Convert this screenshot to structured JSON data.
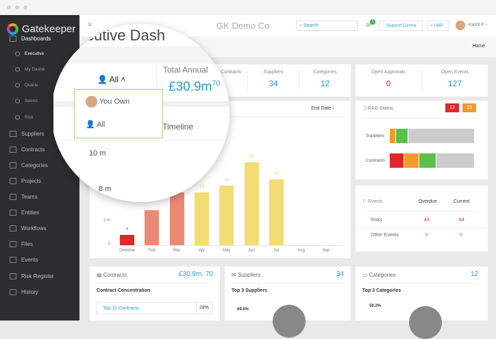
{
  "app": {
    "name": "Gatekeeper",
    "title_full": "GK Demo Co",
    "title_magnified": "cutive Dash"
  },
  "sidebar": {
    "items": [
      {
        "label": "Dashboards",
        "icon": "monitor-icon"
      },
      {
        "label": "Executive",
        "icon": "globe-icon",
        "sub": true
      },
      {
        "label": "My Dashb",
        "icon": "dashboard-icon",
        "sub": true
      },
      {
        "label": "Quarte",
        "icon": "plus-circle-icon",
        "sub": true
      },
      {
        "label": "Spend",
        "icon": "chart-icon",
        "sub": true
      },
      {
        "label": "Risk",
        "icon": "warning-icon",
        "sub": true
      },
      {
        "label": "Suppliers",
        "icon": "briefcase-icon"
      },
      {
        "label": "Contracts",
        "icon": "document-icon"
      },
      {
        "label": "Categories",
        "icon": "folder-icon"
      },
      {
        "label": "Projects",
        "icon": "project-icon"
      },
      {
        "label": "Teams",
        "icon": "team-icon"
      },
      {
        "label": "Entities",
        "icon": "building-icon"
      },
      {
        "label": "Workflows",
        "icon": "workflow-icon"
      },
      {
        "label": "Files",
        "icon": "folder-icon"
      },
      {
        "label": "Events",
        "icon": "flag-icon"
      },
      {
        "label": "Risk Register",
        "icon": "warning-icon"
      },
      {
        "label": "History",
        "icon": "clock-icon"
      }
    ]
  },
  "header": {
    "search_placeholder": "Search",
    "notifications": "1",
    "support": "Support Centre",
    "currency": "GBP",
    "user": "Karol P"
  },
  "breadcrumb": "Home",
  "filter": {
    "selected": "All",
    "options": [
      "You Own",
      "All"
    ]
  },
  "stats": {
    "total_label": "Total Annual",
    "total_value": "£30.9m",
    "contracts_label": "Contracts",
    "contracts_value": "70",
    "suppliers_label": "Suppliers",
    "suppliers_value": "34",
    "categories_label": "Categories",
    "categories_value": "12",
    "approvals_label": "Open Approvals",
    "approvals_value": "0",
    "events_label": "Open Events",
    "events_value": "127"
  },
  "timeline": {
    "title_fragment": "s Timeline",
    "end_date": "End Date"
  },
  "chart_data": {
    "type": "bar",
    "categories": [
      "Overdue",
      "Feb",
      "Mar",
      "Apr",
      "May",
      "Jun",
      "Jul",
      "Aug",
      "Sep"
    ],
    "values": [
      0.85,
      2.9,
      4.4,
      4.4,
      5.0,
      6.9,
      5.5,
      0,
      0
    ],
    "labels": [
      "4",
      "",
      "",
      "10",
      "12",
      "15",
      "14",
      "",
      ""
    ],
    "colors": [
      "#e3262b",
      "#ea8a74",
      "#ea8a74",
      "#f3dc74",
      "#f3dc74",
      "#f3dc74",
      "#f3dc74",
      "#f3dc74",
      "#f3dc74"
    ],
    "ytick_labels": [
      "0",
      "2 m"
    ],
    "ytick_labels_magnified": [
      "10 m",
      "8 m"
    ],
    "ylim": [
      0,
      8
    ],
    "grid": false
  },
  "rag": {
    "title": "RAG Status",
    "red_count": "12",
    "amber_count": "15",
    "rows": [
      {
        "label": "Suppliers",
        "segments": [
          {
            "color": "#f39a2b",
            "value": 2
          },
          {
            "color": "#5cc04a",
            "value": 4
          },
          {
            "color": "#cccccc",
            "value": 22
          }
        ]
      },
      {
        "label": "Contracts",
        "segments": [
          {
            "color": "#e3262b",
            "value": 5
          },
          {
            "color": "#f39a2b",
            "value": 5
          },
          {
            "color": "#5cc04a",
            "value": 6
          },
          {
            "color": "#cccccc",
            "value": 13
          }
        ]
      }
    ]
  },
  "events": {
    "title": "Events",
    "col1": "Overdue",
    "col2": "Current",
    "rows": [
      {
        "label": "Risks",
        "overdue": "43",
        "current": "84"
      },
      {
        "label": "Other Events",
        "overdue": "0",
        "current": "0"
      }
    ]
  },
  "contracts_card": {
    "title": "Contracts",
    "value": "£30.9m, 70",
    "subtitle": "Contract Concentration",
    "row_label": "Top 10 Contracts",
    "row_value": "28%"
  },
  "suppliers_card": {
    "title": "Suppliers",
    "value": "34",
    "subtitle": "Top 3 Suppliers",
    "pct": "69.6%"
  },
  "categories_card": {
    "title": "Categories",
    "value": "12",
    "subtitle": "Top 3 Categories",
    "pct": "59.2%"
  }
}
